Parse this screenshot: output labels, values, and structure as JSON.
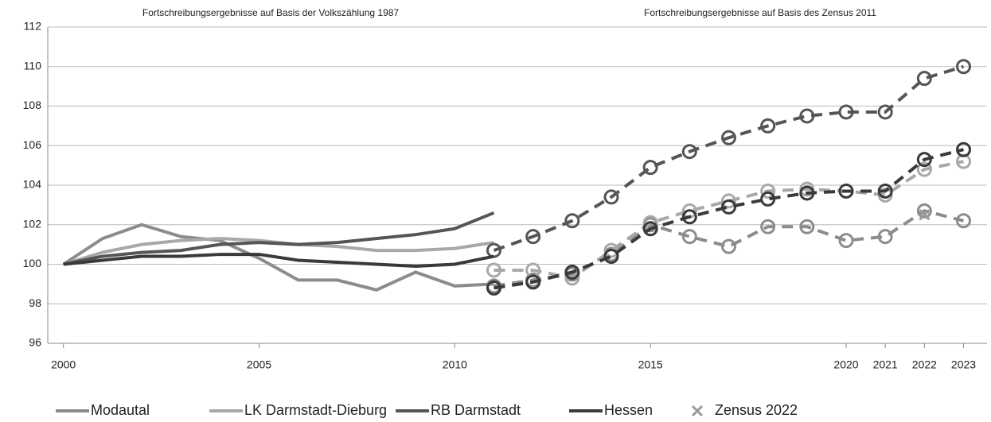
{
  "chart_data": {
    "type": "line",
    "annotations": [
      "Fortschreibungsergebnisse auf Basis der Volkszählung 1987",
      "Fortschreibungsergebnisse auf Basis des Zensus 2011"
    ],
    "xlim": [
      1999.6,
      2023.6
    ],
    "xticks": [
      2000,
      2005,
      2010,
      2015,
      2020,
      2021,
      2022,
      2023
    ],
    "ylim": [
      96,
      112
    ],
    "yticks": [
      96,
      98,
      100,
      102,
      104,
      106,
      108,
      110,
      112
    ],
    "grid": true,
    "series": [
      {
        "name": "Modautal",
        "color": "#8c8c8c",
        "segments": [
          {
            "style": "solid",
            "x": [
              2000,
              2001,
              2002,
              2003,
              2004,
              2005,
              2006,
              2007,
              2008,
              2009,
              2010,
              2011
            ],
            "values": [
              100,
              101.3,
              102.0,
              101.4,
              101.2,
              100.3,
              99.2,
              99.2,
              98.7,
              99.6,
              98.9,
              99.0
            ]
          },
          {
            "style": "dashed",
            "x": [
              2011,
              2012,
              2013,
              2014,
              2015,
              2016,
              2017,
              2018,
              2019,
              2020,
              2021,
              2022,
              2023
            ],
            "values": [
              98.9,
              99.2,
              99.5,
              100.5,
              102.0,
              101.4,
              100.9,
              101.9,
              101.9,
              101.2,
              101.4,
              102.7,
              102.2
            ]
          }
        ]
      },
      {
        "name": "LK Darmstadt-Dieburg",
        "color": "#a8a8a8",
        "segments": [
          {
            "style": "solid",
            "x": [
              2000,
              2001,
              2002,
              2003,
              2004,
              2005,
              2006,
              2007,
              2008,
              2009,
              2010,
              2011
            ],
            "values": [
              100,
              100.6,
              101.0,
              101.2,
              101.3,
              101.2,
              101.0,
              100.9,
              100.7,
              100.7,
              100.8,
              101.1
            ]
          },
          {
            "style": "dashed",
            "x": [
              2011,
              2012,
              2013,
              2014,
              2015,
              2016,
              2017,
              2018,
              2019,
              2020,
              2021,
              2022,
              2023
            ],
            "values": [
              99.7,
              99.7,
              99.3,
              100.7,
              102.1,
              102.7,
              103.2,
              103.7,
              103.8,
              103.7,
              103.5,
              104.8,
              105.2
            ]
          }
        ]
      },
      {
        "name": "RB Darmstadt",
        "color": "#555555",
        "segments": [
          {
            "style": "solid",
            "x": [
              2000,
              2001,
              2002,
              2003,
              2004,
              2005,
              2006,
              2007,
              2008,
              2009,
              2010,
              2011
            ],
            "values": [
              100,
              100.4,
              100.6,
              100.7,
              101.0,
              101.1,
              101.0,
              101.1,
              101.3,
              101.5,
              101.8,
              102.6
            ]
          },
          {
            "style": "dashed",
            "x": [
              2011,
              2012,
              2013,
              2014,
              2015,
              2016,
              2017,
              2018,
              2019,
              2020,
              2021,
              2022,
              2023
            ],
            "values": [
              100.7,
              101.4,
              102.2,
              103.4,
              104.9,
              105.7,
              106.4,
              107.0,
              107.5,
              107.7,
              107.7,
              109.4,
              110.0
            ]
          }
        ]
      },
      {
        "name": "Hessen",
        "color": "#3a3a3a",
        "segments": [
          {
            "style": "solid",
            "x": [
              2000,
              2001,
              2002,
              2003,
              2004,
              2005,
              2006,
              2007,
              2008,
              2009,
              2010,
              2011
            ],
            "values": [
              100,
              100.2,
              100.4,
              100.4,
              100.5,
              100.5,
              100.2,
              100.1,
              100.0,
              99.9,
              100.0,
              100.4
            ]
          },
          {
            "style": "dashed",
            "x": [
              2011,
              2012,
              2013,
              2014,
              2015,
              2016,
              2017,
              2018,
              2019,
              2020,
              2021,
              2022,
              2023
            ],
            "values": [
              98.8,
              99.1,
              99.6,
              100.4,
              101.8,
              102.4,
              102.9,
              103.3,
              103.6,
              103.7,
              103.7,
              105.3,
              105.8
            ]
          }
        ]
      }
    ],
    "markers": {
      "name": "Zensus 2022",
      "color": "#999999",
      "x": [
        2022
      ],
      "values": [
        102.5
      ]
    }
  }
}
